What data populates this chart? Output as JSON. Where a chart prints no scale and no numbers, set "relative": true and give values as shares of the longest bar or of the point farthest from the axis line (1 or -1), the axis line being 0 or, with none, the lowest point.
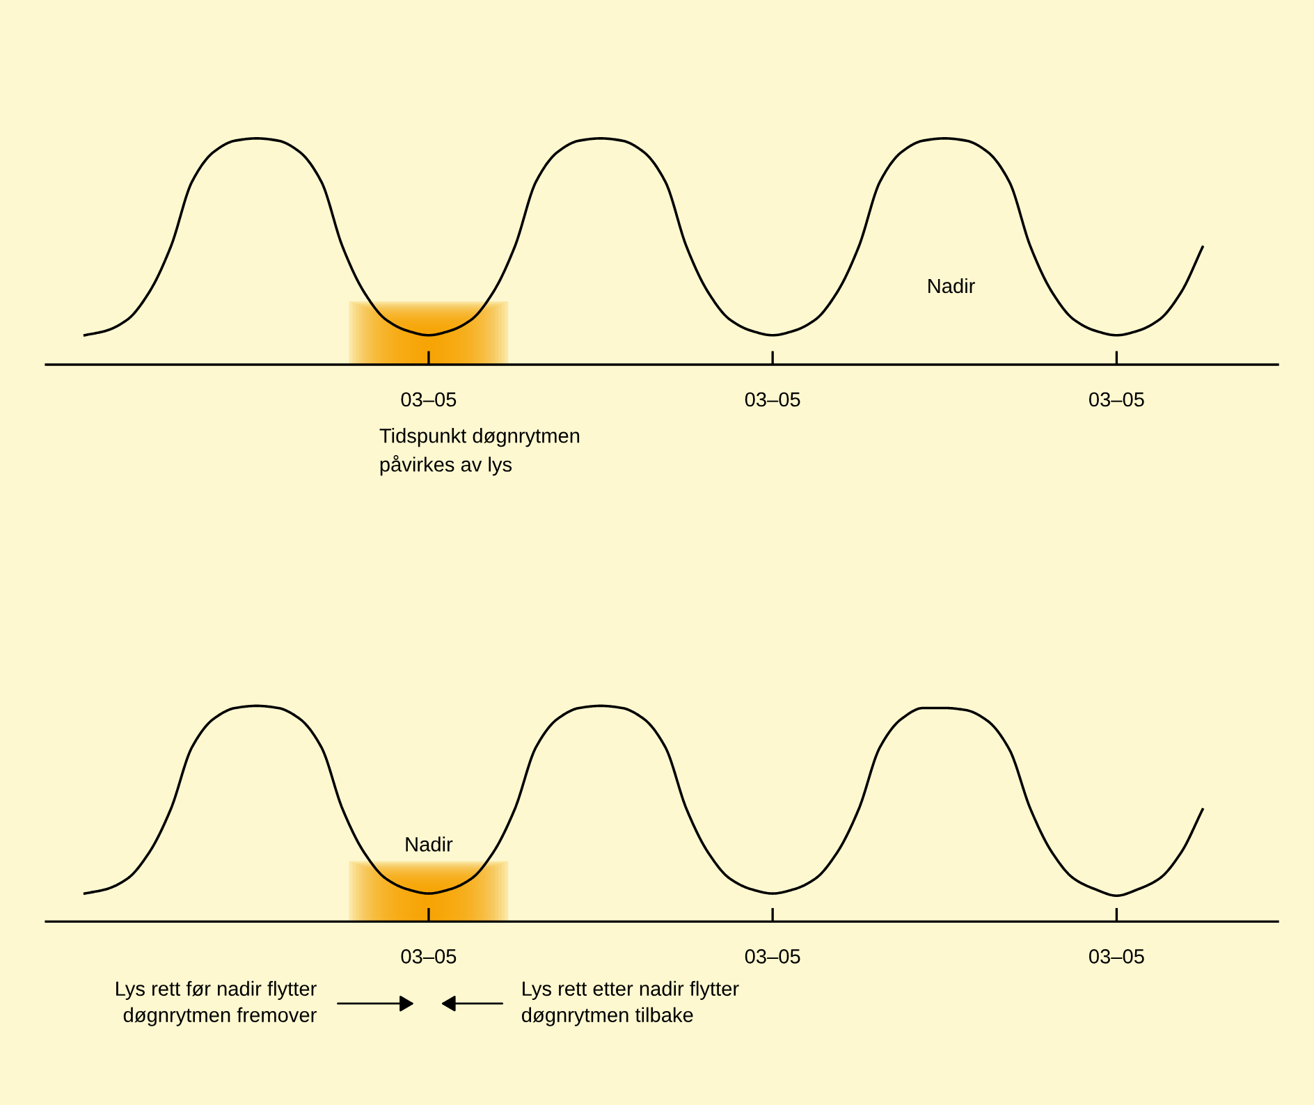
{
  "chart_data": [
    {
      "type": "line",
      "relative": true,
      "grid": false,
      "marker": "none",
      "line_style": "solid",
      "categories": [
        null,
        null,
        null,
        null,
        null,
        null,
        null,
        null,
        null,
        null,
        null,
        null,
        null,
        null,
        null,
        null,
        "03–05",
        null,
        null,
        null,
        null,
        null,
        null,
        null,
        null,
        null,
        null,
        null,
        null,
        null,
        null,
        null,
        "03–05",
        null,
        null,
        null,
        null,
        null,
        null,
        null,
        null,
        null,
        null,
        null,
        null,
        null,
        null,
        null,
        "03–05",
        null,
        null,
        null,
        null
      ],
      "series": [
        {
          "color": "#000000",
          "values": [
            0.13,
            0.15,
            0.2,
            0.32,
            0.52,
            0.81,
            0.94,
            0.99,
            1,
            0.99,
            0.94,
            0.81,
            0.52,
            0.32,
            0.2,
            0.15,
            0.13,
            0.15,
            0.2,
            0.32,
            0.52,
            0.81,
            0.94,
            0.99,
            1,
            0.99,
            0.94,
            0.81,
            0.52,
            0.32,
            0.2,
            0.15,
            0.13,
            0.15,
            0.2,
            0.32,
            0.52,
            0.81,
            0.94,
            0.99,
            1,
            0.99,
            0.94,
            0.81,
            0.52,
            0.32,
            0.2,
            0.15,
            0.13,
            0.15,
            0.2,
            0.32,
            0.52
          ]
        }
      ],
      "annotations": [
        "Tidspunkt døgnrytmen\npåvirkes av lys",
        "Nadir"
      ]
    },
    {
      "type": "line",
      "relative": true,
      "grid": false,
      "marker": "none",
      "line_style": "solid",
      "categories": [
        null,
        null,
        null,
        null,
        null,
        null,
        null,
        null,
        null,
        null,
        null,
        null,
        null,
        null,
        null,
        null,
        "03–05",
        null,
        null,
        null,
        null,
        null,
        null,
        null,
        null,
        null,
        null,
        null,
        null,
        null,
        null,
        null,
        "03–05",
        null,
        null,
        null,
        null,
        null,
        null,
        null,
        null,
        null,
        null,
        null,
        null,
        null,
        null,
        null,
        "03–05",
        null,
        null,
        null,
        null
      ],
      "series": [
        {
          "color": "#000000",
          "values": [
            0.13,
            0.15,
            0.2,
            0.32,
            0.52,
            0.81,
            0.94,
            0.99,
            1,
            0.99,
            0.94,
            0.81,
            0.52,
            0.32,
            0.2,
            0.15,
            0.13,
            0.15,
            0.2,
            0.32,
            0.52,
            0.81,
            0.94,
            0.99,
            1,
            0.99,
            0.94,
            0.81,
            0.52,
            0.32,
            0.2,
            0.15,
            0.13,
            0.15,
            0.2,
            0.32,
            0.52,
            0.81,
            0.94,
            0.99,
            0.99,
            0.98,
            0.93,
            0.8,
            0.52,
            0.32,
            0.2,
            0.15,
            0.12,
            0.15,
            0.2,
            0.32,
            0.52
          ]
        }
      ],
      "annotations": [
        "Nadir",
        "Lys rett før nadir flytter\ndøgnrytmen fremover",
        "Lys rett etter nadir flytter\ndøgnrytmen tilbake"
      ]
    }
  ]
}
